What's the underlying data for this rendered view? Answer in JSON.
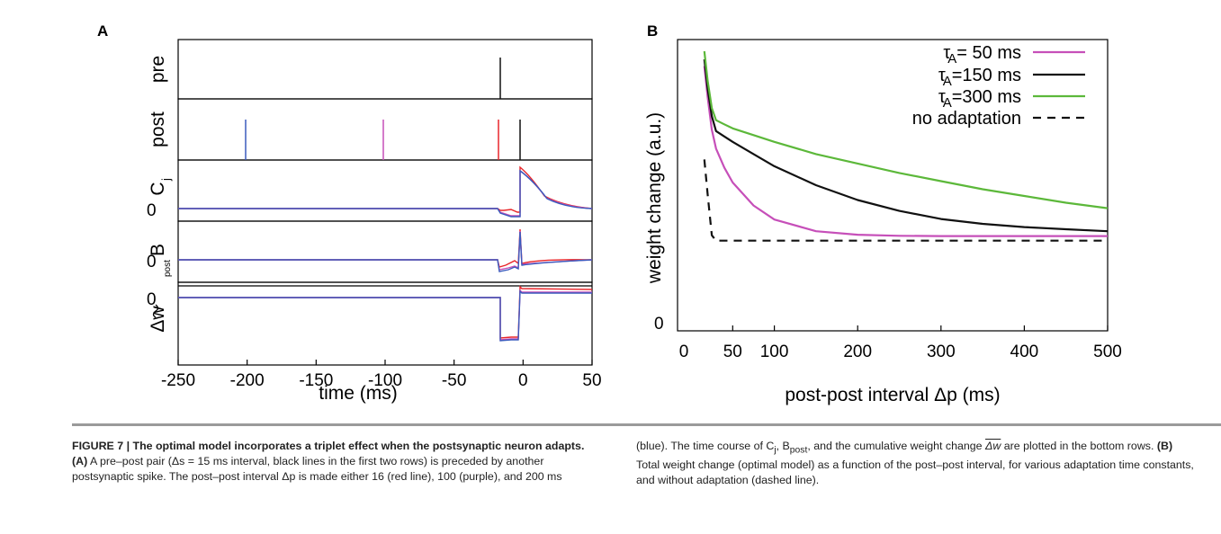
{
  "panel_a": {
    "letter": "A",
    "row_labels": {
      "pre": "pre",
      "post": "post",
      "cj": "C",
      "cj_sub": "j",
      "bpost": "B",
      "bpost_sub": "post",
      "dw": "Δw"
    },
    "zero_label": "0",
    "x_ticks": [
      "-250",
      "-200",
      "-150",
      "-100",
      "-50",
      "0",
      "50"
    ],
    "xlabel": "time (ms)"
  },
  "panel_b": {
    "letter": "B",
    "ylabel": "weight change (a.u.)",
    "y_zero": "0",
    "x_ticks": [
      "0",
      "50",
      "100",
      "200",
      "300",
      "400",
      "500"
    ],
    "xlabel": "post-post interval Δp (ms)",
    "legend": [
      {
        "tau": "τ",
        "sub": "A",
        "text": "= 50   ms",
        "color": "#c64fb9",
        "dash": false
      },
      {
        "tau": "τ",
        "sub": "A",
        "text": "=150  ms",
        "color": "#111111",
        "dash": false
      },
      {
        "tau": "τ",
        "sub": "A",
        "text": "=300  ms",
        "color": "#5cb83a",
        "dash": false
      },
      {
        "tau": "",
        "sub": "",
        "text": "no adaptation",
        "color": "#111111",
        "dash": true
      }
    ]
  },
  "colors": {
    "red": "#e8262a",
    "purple": "#c64fb9",
    "blue": "#3a5bbd",
    "black": "#111111",
    "green": "#5cb83a"
  },
  "chart_data": [
    {
      "type": "line",
      "title": "",
      "xlabel": "time (ms)",
      "xlim": [
        -250,
        50
      ],
      "spike_times_ms": {
        "pre": [
          -15
        ],
        "post_red": [
          -16
        ],
        "post_purple": [
          -100
        ],
        "post_blue": [
          -200
        ],
        "post_pair": [
          0
        ]
      }
    },
    {
      "type": "line",
      "title": "",
      "xlabel": "post-post interval Δp (ms)",
      "ylabel": "weight change (a.u.)",
      "xlim": [
        0,
        500
      ],
      "ylim": [
        0,
        10
      ],
      "x": [
        16,
        20,
        25,
        30,
        40,
        50,
        75,
        100,
        150,
        200,
        250,
        300,
        350,
        400,
        450,
        500
      ],
      "series": [
        {
          "name": "τA= 50 ms",
          "values": [
            9.55,
            8.4,
            7.2,
            6.5,
            5.8,
            5.25,
            4.4,
            3.88,
            3.45,
            3.32,
            3.28,
            3.27,
            3.27,
            3.27,
            3.27,
            3.27
          ]
        },
        {
          "name": "τA=150 ms",
          "values": [
            9.8,
            8.7,
            7.7,
            7.15,
            6.95,
            6.75,
            6.3,
            5.85,
            5.15,
            4.6,
            4.2,
            3.9,
            3.72,
            3.6,
            3.52,
            3.45
          ]
        },
        {
          "name": "τA=300 ms",
          "values": [
            10.1,
            9.0,
            8.0,
            7.55,
            7.4,
            7.25,
            7.0,
            6.75,
            6.3,
            5.95,
            5.6,
            5.3,
            5.0,
            4.75,
            4.5,
            4.3
          ]
        },
        {
          "name": "no adaptation",
          "values": [
            6.1,
            4.8,
            3.3,
            3.1,
            3.1,
            3.1,
            3.1,
            3.1,
            3.1,
            3.1,
            3.1,
            3.1,
            3.1,
            3.1,
            3.1,
            3.1
          ]
        }
      ]
    }
  ],
  "caption": {
    "left_bold": "FIGURE 7 | The optimal model incorporates a triplet effect when the postsynaptic neuron adapts.",
    "left_bold_a": "(A)",
    "left_text": "A pre–post pair (Δs = 15 ms interval, black lines in the first two rows) is preceded by another postsynaptic spike. The post–post interval Δp is made either 16 (red line), 100 (purple), and 200 ms",
    "right_text_1": "(blue). The time course of C",
    "right_sub_j": "j",
    "right_text_2": ", B",
    "right_sub_post": "post",
    "right_text_3": ", and the cumulative weight change ",
    "right_dw": "Δw",
    "right_text_4": " are plotted in the bottom rows.",
    "right_bold_b": "(B)",
    "right_text_5": "Total weight change (optimal model) as a function of the post–post interval, for various adaptation time constants, and without adaptation (dashed line)."
  }
}
